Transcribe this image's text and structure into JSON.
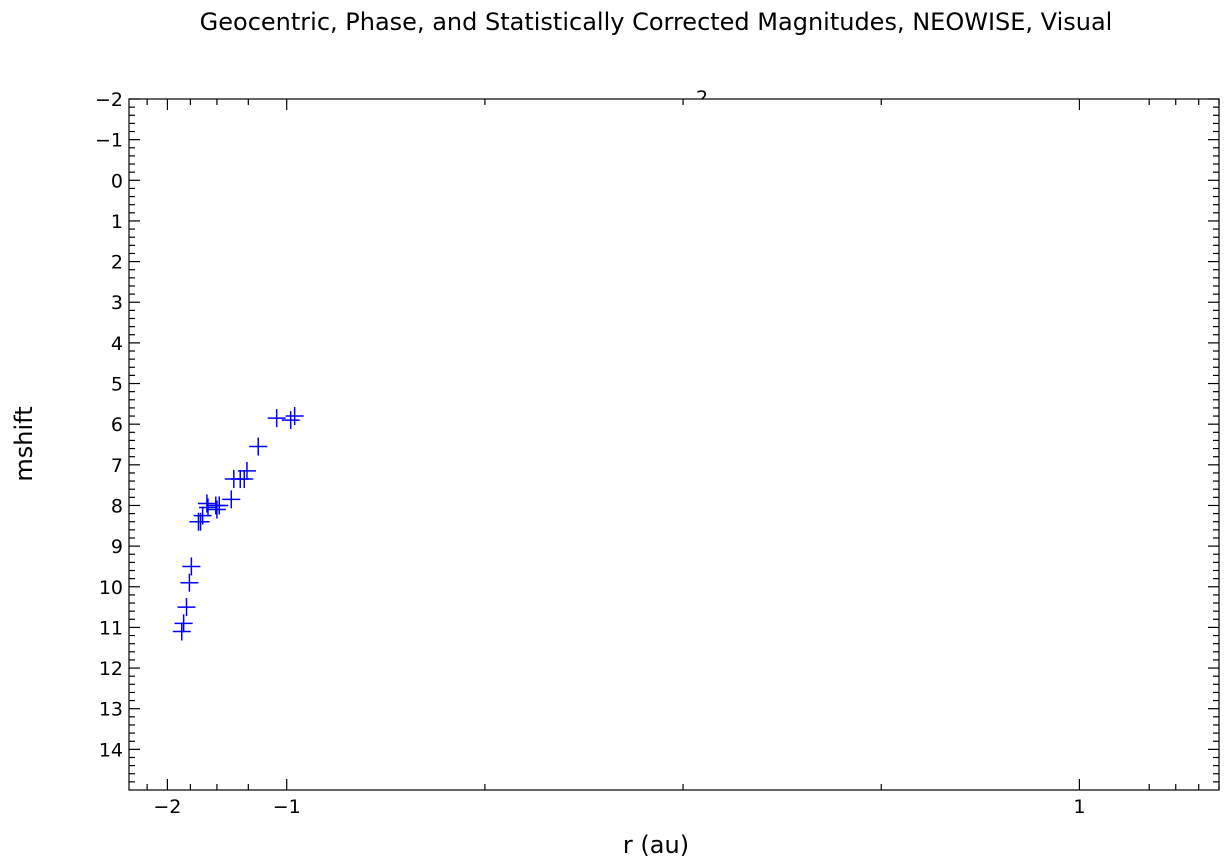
{
  "chart_data": {
    "type": "scatter",
    "title": "Geocentric, Phase, and Statistically Corrected Magnitudes, NEOWISE, Visual",
    "xlabel": "r (au)",
    "ylabel": "mshift",
    "xscale": "symlog",
    "xlim": [
      -2.5,
      2.25
    ],
    "ylim": [
      15,
      -2
    ],
    "y_inverted": true,
    "x_ticks": [
      {
        "value": -2,
        "label": "−2"
      },
      {
        "value": -1,
        "label": "−1"
      },
      {
        "value": 1,
        "label": "1"
      }
    ],
    "y_ticks": [
      {
        "value": -2,
        "label": "−2"
      },
      {
        "value": -1,
        "label": "−1"
      },
      {
        "value": 0,
        "label": "0"
      },
      {
        "value": 1,
        "label": "1"
      },
      {
        "value": 2,
        "label": "2"
      },
      {
        "value": 3,
        "label": "3"
      },
      {
        "value": 4,
        "label": "4"
      },
      {
        "value": 5,
        "label": "5"
      },
      {
        "value": 6,
        "label": "6"
      },
      {
        "value": 7,
        "label": "7"
      },
      {
        "value": 8,
        "label": "8"
      },
      {
        "value": 9,
        "label": "9"
      },
      {
        "value": 10,
        "label": "10"
      },
      {
        "value": 11,
        "label": "11"
      },
      {
        "value": 12,
        "label": "12"
      },
      {
        "value": 13,
        "label": "13"
      },
      {
        "value": 14,
        "label": "14"
      }
    ],
    "top_partial_label": "2",
    "marker": "+",
    "color": "#0000ff",
    "points": [
      {
        "x": -1.84,
        "y": 11.1
      },
      {
        "x": -1.82,
        "y": 10.9
      },
      {
        "x": -1.79,
        "y": 10.5
      },
      {
        "x": -1.76,
        "y": 9.9
      },
      {
        "x": -1.74,
        "y": 9.5
      },
      {
        "x": -1.67,
        "y": 8.4
      },
      {
        "x": -1.65,
        "y": 8.4
      },
      {
        "x": -1.63,
        "y": 8.25
      },
      {
        "x": -1.59,
        "y": 7.95
      },
      {
        "x": -1.58,
        "y": 8.05
      },
      {
        "x": -1.51,
        "y": 8.0
      },
      {
        "x": -1.5,
        "y": 8.1
      },
      {
        "x": -1.48,
        "y": 8.0
      },
      {
        "x": -1.38,
        "y": 7.85
      },
      {
        "x": -1.36,
        "y": 7.35
      },
      {
        "x": -1.31,
        "y": 7.35
      },
      {
        "x": -1.28,
        "y": 7.35
      },
      {
        "x": -1.26,
        "y": 7.15
      },
      {
        "x": -1.18,
        "y": 6.55
      },
      {
        "x": -1.06,
        "y": 5.85
      },
      {
        "x": -0.99,
        "y": 5.9
      },
      {
        "x": -0.98,
        "y": 5.8
      }
    ]
  }
}
